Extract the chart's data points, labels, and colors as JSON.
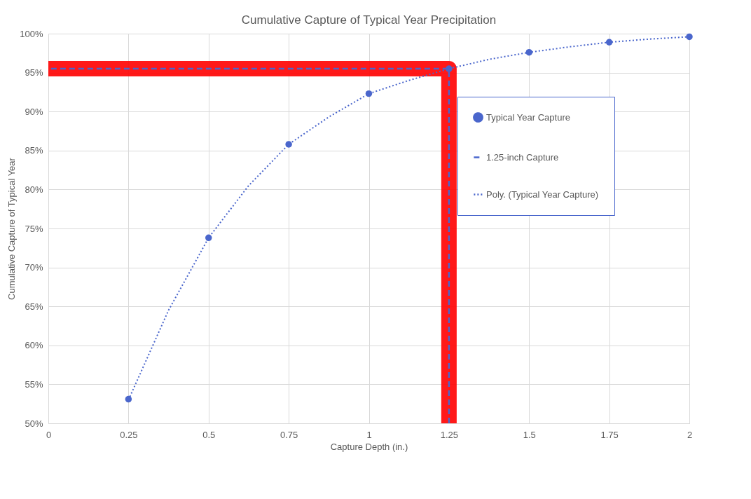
{
  "chart_data": {
    "type": "scatter",
    "title": "Cumulative Capture of Typical Year Precipitation",
    "xlabel": "Capture Depth (in.)",
    "ylabel": "Cumulative Capture of Typical Year",
    "xlim": [
      0,
      2
    ],
    "xticks": [
      0,
      0.25,
      0.5,
      0.75,
      1,
      1.25,
      1.5,
      1.75,
      2
    ],
    "ylim": [
      50,
      100
    ],
    "yticks": [
      {
        "value": 50,
        "label": "50%"
      },
      {
        "value": 55,
        "label": "55%"
      },
      {
        "value": 60,
        "label": "60%"
      },
      {
        "value": 65,
        "label": "65%"
      },
      {
        "value": 70,
        "label": "70%"
      },
      {
        "value": 75,
        "label": "75%"
      },
      {
        "value": 80,
        "label": "80%"
      },
      {
        "value": 85,
        "label": "85%"
      },
      {
        "value": 90,
        "label": "90%"
      },
      {
        "value": 95,
        "label": "95%"
      },
      {
        "value": 100,
        "label": "100%"
      }
    ],
    "grid": true,
    "legend": "top right",
    "series": [
      {
        "type": "line",
        "color": "#ff0000",
        "line_style": "solid",
        "x": [
          1.25,
          1.25,
          0
        ],
        "values": [
          50,
          95.5,
          95.5
        ]
      },
      {
        "type": "line",
        "name": "1.25-inch Capture",
        "color": "#4a66cc",
        "line_style": "dashed",
        "x": [
          1.25,
          1.25,
          0
        ],
        "values": [
          50,
          95.5,
          95.5
        ]
      },
      {
        "type": "line",
        "name": "Poly. (Typical Year Capture)",
        "color": "#4a66cc",
        "line_style": "dotted",
        "x": [
          0.25,
          0.375,
          0.5,
          0.625,
          0.75,
          0.875,
          1,
          1.125,
          1.25,
          1.375,
          1.5,
          1.625,
          1.75,
          1.875,
          2
        ],
        "values": [
          53,
          64.5,
          73.8,
          80.5,
          85.8,
          89.3,
          92.3,
          94.0,
          95.5,
          96.7,
          97.6,
          98.3,
          98.9,
          99.3,
          99.6
        ]
      },
      {
        "name": "Typical Year Capture",
        "color": "#4a66cc",
        "marker": "circle",
        "x": [
          0.25,
          0.5,
          0.75,
          1,
          1.25,
          1.5,
          1.75,
          2
        ],
        "values": [
          53.1,
          73.8,
          85.8,
          92.3,
          95.5,
          97.6,
          98.9,
          99.6
        ]
      }
    ]
  }
}
